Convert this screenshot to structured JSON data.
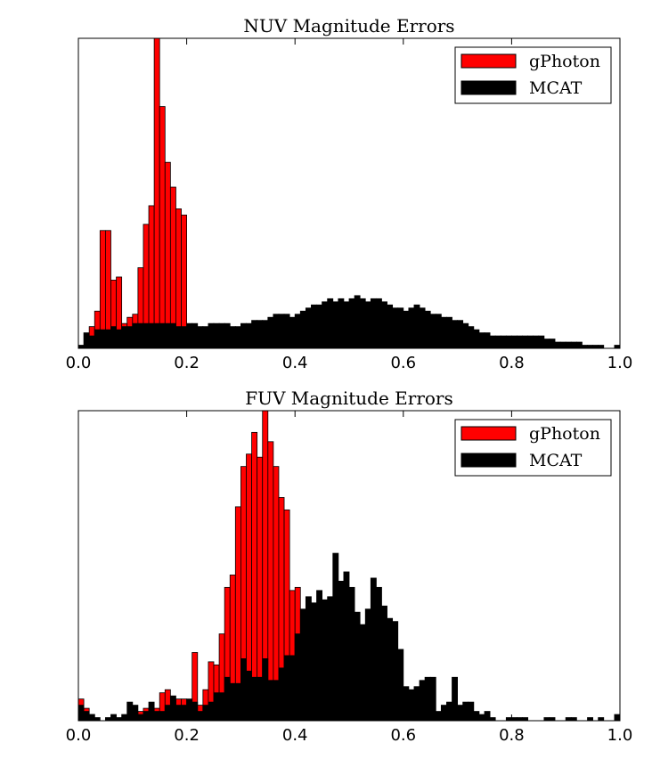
{
  "chart_data": [
    {
      "type": "bar",
      "title": "NUV Magnitude Errors",
      "xlabel": "",
      "ylabel": "",
      "xlim": [
        0,
        1
      ],
      "ylim": [
        0,
        100
      ],
      "x_ticks": [
        "0.0",
        "0.2",
        "0.4",
        "0.6",
        "0.8",
        "1.0"
      ],
      "bin_width": 0.01,
      "grid": false,
      "legend_position": "top-right",
      "series": [
        {
          "name": "gPhoton",
          "color": "#ff0000",
          "values": [
            0,
            0,
            7,
            12,
            38,
            38,
            22,
            23,
            8,
            10,
            11,
            26,
            40,
            46,
            100,
            78,
            60,
            52,
            45,
            43,
            0,
            0,
            0,
            0,
            0,
            0,
            0,
            0,
            0,
            0,
            0,
            0,
            0,
            0,
            0,
            0,
            0,
            0,
            0,
            0,
            0,
            0,
            0,
            0,
            0,
            0,
            0,
            0,
            0,
            0,
            0,
            0,
            0,
            0,
            0,
            0,
            0,
            0,
            0,
            0,
            0,
            0,
            0,
            0,
            0,
            0,
            0,
            0,
            0,
            0,
            0,
            0,
            0,
            0,
            0,
            0,
            0,
            0,
            0,
            0,
            0,
            0,
            0,
            0,
            0,
            0,
            0,
            0,
            0,
            0,
            0,
            0,
            0,
            0,
            0,
            0,
            0,
            0,
            0,
            0
          ]
        },
        {
          "name": "MCAT",
          "color": "#000000",
          "values": [
            1,
            5,
            4,
            6,
            6,
            6,
            7,
            6,
            7,
            7,
            8,
            8,
            8,
            8,
            8,
            8,
            8,
            8,
            7,
            7,
            8,
            8,
            7,
            7,
            8,
            8,
            8,
            8,
            7,
            7,
            8,
            8,
            9,
            9,
            9,
            10,
            11,
            11,
            11,
            10,
            11,
            12,
            13,
            14,
            14,
            15,
            16,
            15,
            16,
            15,
            16,
            17,
            16,
            15,
            16,
            16,
            15,
            14,
            13,
            13,
            12,
            13,
            14,
            13,
            12,
            11,
            11,
            10,
            10,
            9,
            9,
            8,
            7,
            6,
            5,
            5,
            4,
            4,
            4,
            4,
            4,
            4,
            4,
            4,
            4,
            4,
            3,
            3,
            2,
            2,
            2,
            2,
            2,
            1,
            1,
            1,
            1,
            0,
            0,
            1
          ]
        }
      ]
    },
    {
      "type": "bar",
      "title": "FUV Magnitude Errors",
      "xlabel": "",
      "ylabel": "",
      "xlim": [
        0,
        1
      ],
      "ylim": [
        0,
        100
      ],
      "x_ticks": [
        "0.0",
        "0.2",
        "0.4",
        "0.6",
        "0.8",
        "1.0"
      ],
      "bin_width": 0.01,
      "grid": false,
      "legend_position": "top-right",
      "series": [
        {
          "name": "gPhoton",
          "color": "#ff0000",
          "values": [
            7,
            4,
            2,
            0,
            0,
            0,
            1,
            0,
            1,
            1,
            2,
            3,
            4,
            4,
            4,
            9,
            10,
            0,
            7,
            7,
            4,
            22,
            5,
            10,
            19,
            18,
            28,
            43,
            47,
            69,
            82,
            86,
            93,
            85,
            100,
            90,
            82,
            72,
            68,
            42,
            43,
            0,
            0,
            0,
            0,
            0,
            0,
            0,
            0,
            0,
            0,
            0,
            0,
            0,
            0,
            0,
            0,
            0,
            0,
            0,
            0,
            0,
            0,
            0,
            0,
            0,
            0,
            0,
            0,
            0,
            0,
            0,
            0,
            0,
            0,
            0,
            0,
            0,
            0,
            0,
            0,
            0,
            0,
            0,
            0,
            0,
            0,
            0,
            0,
            0,
            0,
            0,
            0,
            0,
            0,
            0,
            0,
            0,
            0,
            0
          ]
        },
        {
          "name": "MCAT",
          "color": "#000000",
          "values": [
            5,
            3,
            2,
            1,
            0,
            1,
            2,
            1,
            2,
            6,
            5,
            2,
            3,
            6,
            3,
            3,
            5,
            8,
            5,
            5,
            7,
            6,
            3,
            5,
            6,
            9,
            9,
            14,
            12,
            12,
            20,
            16,
            14,
            14,
            20,
            13,
            13,
            17,
            21,
            21,
            28,
            36,
            40,
            38,
            42,
            39,
            40,
            54,
            45,
            48,
            43,
            35,
            31,
            36,
            46,
            43,
            37,
            33,
            32,
            23,
            11,
            10,
            11,
            13,
            14,
            14,
            3,
            5,
            6,
            14,
            5,
            6,
            6,
            3,
            2,
            3,
            1,
            0,
            0,
            1,
            1,
            1,
            1,
            0,
            0,
            0,
            1,
            1,
            0,
            0,
            1,
            1,
            0,
            0,
            1,
            0,
            1,
            0,
            0,
            2
          ]
        }
      ]
    }
  ]
}
